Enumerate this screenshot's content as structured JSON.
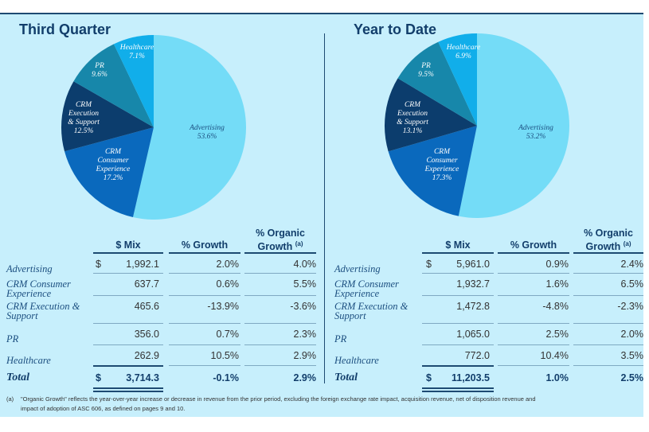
{
  "colors": {
    "Advertising": "#74dcf7",
    "CRM Consumer Experience": "#0a69bd",
    "CRM Execution & Support": "#0c3d6d",
    "PR": "#1787aa",
    "Healthcare": "#11aeea"
  },
  "chart_data": [
    {
      "type": "pie",
      "title": "Third Quarter",
      "slices": [
        {
          "label": "Advertising",
          "value": 53.6,
          "display": "53.6%"
        },
        {
          "label": "CRM Consumer Experience",
          "value": 17.2,
          "display": "17.2%"
        },
        {
          "label": "CRM Execution & Support",
          "value": 12.5,
          "display": "12.5%"
        },
        {
          "label": "PR",
          "value": 9.6,
          "display": "9.6%"
        },
        {
          "label": "Healthcare",
          "value": 7.1,
          "display": "7.1%"
        }
      ]
    },
    {
      "type": "pie",
      "title": "Year to Date",
      "slices": [
        {
          "label": "Advertising",
          "value": 53.2,
          "display": "53.2%"
        },
        {
          "label": "CRM Consumer Experience",
          "value": 17.3,
          "display": "17.3%"
        },
        {
          "label": "CRM Execution & Support",
          "value": 13.1,
          "display": "13.1%"
        },
        {
          "label": "PR",
          "value": 9.5,
          "display": "9.5%"
        },
        {
          "label": "Healthcare",
          "value": 6.9,
          "display": "6.9%"
        }
      ]
    }
  ],
  "pie_labels": {
    "advertising": "Advertising",
    "pr": "PR",
    "healthcare": "Healthcare",
    "crm_exec": [
      "CRM",
      "Execution",
      "& Support"
    ],
    "crm_consumer": [
      "CRM",
      "Consumer",
      "Experience"
    ]
  },
  "headers": {
    "mix": "$ Mix",
    "growth": "% Growth",
    "organic_1": "% Organic",
    "organic_2": "Growth",
    "organic_note": "(a)"
  },
  "tables": [
    {
      "rows": [
        {
          "label": [
            "Advertising"
          ],
          "dollar": "$",
          "mix": "1,992.1",
          "growth": "2.0%",
          "organic": "4.0%"
        },
        {
          "label": [
            "CRM Consumer",
            "Experience"
          ],
          "mix": "637.7",
          "growth": "0.6%",
          "organic": "5.5%"
        },
        {
          "label": [
            "CRM Execution &",
            "Support"
          ],
          "mix": "465.6",
          "growth": "-13.9%",
          "organic": "-3.6%"
        },
        {
          "label": [
            "PR"
          ],
          "mix": "356.0",
          "growth": "0.7%",
          "organic": "2.3%"
        },
        {
          "label": [
            "Healthcare"
          ],
          "mix": "262.9",
          "growth": "10.5%",
          "organic": "2.9%"
        }
      ],
      "total": {
        "label": "Total",
        "dollar": "$",
        "mix": "3,714.3",
        "growth": "-0.1%",
        "organic": "2.9%"
      }
    },
    {
      "rows": [
        {
          "label": [
            "Advertising"
          ],
          "dollar": "$",
          "mix": "5,961.0",
          "growth": "0.9%",
          "organic": "2.4%"
        },
        {
          "label": [
            "CRM Consumer",
            "Experience"
          ],
          "mix": "1,932.7",
          "growth": "1.6%",
          "organic": "6.5%"
        },
        {
          "label": [
            "CRM Execution &",
            "Support"
          ],
          "mix": "1,472.8",
          "growth": "-4.8%",
          "organic": "-2.3%"
        },
        {
          "label": [
            "PR"
          ],
          "mix": "1,065.0",
          "growth": "2.5%",
          "organic": "2.0%"
        },
        {
          "label": [
            "Healthcare"
          ],
          "mix": "772.0",
          "growth": "10.4%",
          "organic": "3.5%"
        }
      ],
      "total": {
        "label": "Total",
        "dollar": "$",
        "mix": "11,203.5",
        "growth": "1.0%",
        "organic": "2.5%"
      }
    }
  ],
  "footnote": {
    "mark": "(a)",
    "line1": "\"Organic Growth\" reflects the year-over-year increase or decrease in revenue from the prior period, excluding the foreign exchange rate impact, acquisition revenue, net of disposition revenue and",
    "line2": "impact of adoption of ASC 606, as defined on pages 9 and 10."
  }
}
